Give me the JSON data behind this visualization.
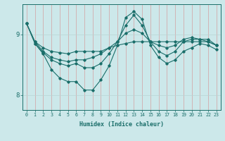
{
  "xlabel": "Humidex (Indice chaleur)",
  "bg_color": "#cce8ea",
  "line_color": "#1a6e6a",
  "grid_color_v": "#d4a0a0",
  "grid_color_h": "#b8d4d4",
  "xlim": [
    -0.5,
    23.5
  ],
  "ylim": [
    7.75,
    9.5
  ],
  "yticks": [
    8,
    9
  ],
  "xticks": [
    0,
    1,
    2,
    3,
    4,
    5,
    6,
    7,
    8,
    9,
    10,
    11,
    12,
    13,
    14,
    15,
    16,
    17,
    18,
    19,
    20,
    21,
    22,
    23
  ],
  "line1_x": [
    0,
    1,
    2,
    3,
    4,
    5,
    6,
    7,
    8,
    9,
    10,
    11,
    12,
    13,
    14,
    15,
    16,
    17,
    18,
    19,
    20,
    21,
    22,
    23
  ],
  "line1_y": [
    9.18,
    8.88,
    8.78,
    8.72,
    8.7,
    8.68,
    8.72,
    8.72,
    8.72,
    8.72,
    8.78,
    8.82,
    8.85,
    8.88,
    8.88,
    8.88,
    8.88,
    8.88,
    8.88,
    8.88,
    8.88,
    8.88,
    8.88,
    8.82
  ],
  "line2_x": [
    0,
    1,
    2,
    3,
    4,
    5,
    6,
    7,
    8,
    9,
    10,
    11,
    12,
    13,
    14,
    15,
    16,
    17,
    18,
    19,
    20,
    21,
    22,
    23
  ],
  "line2_y": [
    9.18,
    8.88,
    8.72,
    8.62,
    8.58,
    8.55,
    8.58,
    8.58,
    8.62,
    8.68,
    8.78,
    8.88,
    9.02,
    9.08,
    9.02,
    8.88,
    8.82,
    8.78,
    8.82,
    8.92,
    8.95,
    8.92,
    8.92,
    8.82
  ],
  "line3_x": [
    0,
    1,
    2,
    3,
    4,
    5,
    6,
    7,
    8,
    9,
    10,
    11,
    12,
    13,
    14,
    15,
    16,
    17,
    18,
    19,
    20,
    21,
    22,
    23
  ],
  "line3_y": [
    9.18,
    8.85,
    8.7,
    8.58,
    8.52,
    8.48,
    8.52,
    8.45,
    8.45,
    8.52,
    8.68,
    8.88,
    9.15,
    9.32,
    9.15,
    8.88,
    8.72,
    8.65,
    8.72,
    8.88,
    8.92,
    8.92,
    8.88,
    8.82
  ],
  "line4_x": [
    1,
    2,
    3,
    4,
    5,
    6,
    7,
    8,
    9,
    10,
    11,
    12,
    13,
    14,
    15,
    16,
    17,
    18,
    19,
    20,
    21,
    22,
    23
  ],
  "line4_y": [
    8.85,
    8.68,
    8.42,
    8.28,
    8.22,
    8.22,
    8.08,
    8.08,
    8.25,
    8.48,
    8.82,
    9.28,
    9.38,
    9.25,
    8.82,
    8.62,
    8.52,
    8.58,
    8.72,
    8.78,
    8.85,
    8.82,
    8.75
  ]
}
